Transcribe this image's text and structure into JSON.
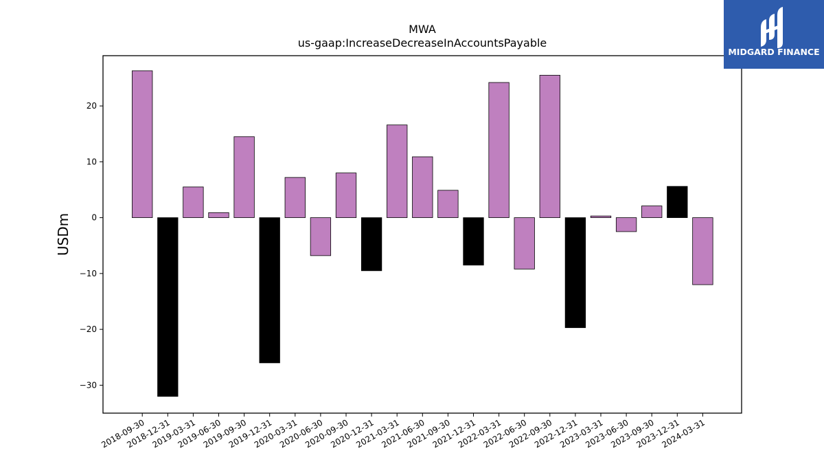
{
  "chart_data": {
    "type": "bar",
    "title": "MWA",
    "subtitle": "us-gaap:IncreaseDecreaseInAccountsPayable",
    "ylabel": "USDm",
    "xlabel": "",
    "ylim": [
      -35,
      29
    ],
    "yticks": [
      -30,
      -20,
      -10,
      0,
      10,
      20
    ],
    "grid": false,
    "categories": [
      "2018-09-30",
      "2018-12-31",
      "2019-03-31",
      "2019-06-30",
      "2019-09-30",
      "2019-12-31",
      "2020-03-31",
      "2020-06-30",
      "2020-09-30",
      "2020-12-31",
      "2021-03-31",
      "2021-06-30",
      "2021-09-30",
      "2021-12-31",
      "2022-03-31",
      "2022-06-30",
      "2022-09-30",
      "2022-12-31",
      "2023-03-31",
      "2023-06-30",
      "2023-09-30",
      "2023-12-31",
      "2024-03-31"
    ],
    "values": [
      26.3,
      -32.0,
      5.5,
      0.9,
      14.5,
      -26.0,
      7.2,
      -6.8,
      8.0,
      -9.5,
      16.6,
      10.9,
      4.9,
      -8.5,
      24.2,
      -9.2,
      25.5,
      -19.7,
      0.3,
      -2.5,
      2.1,
      5.6,
      -12.0
    ],
    "fiscal_year_end": [
      false,
      true,
      false,
      false,
      false,
      true,
      false,
      false,
      false,
      true,
      false,
      false,
      false,
      true,
      false,
      false,
      false,
      true,
      false,
      false,
      false,
      true,
      false
    ],
    "colors": {
      "quarter": "#bf80bf",
      "year_end": "#000000",
      "edge": "#000000"
    }
  },
  "logo": {
    "text": "MIDGARD FINANCE",
    "bg_color": "#2e5cad"
  }
}
